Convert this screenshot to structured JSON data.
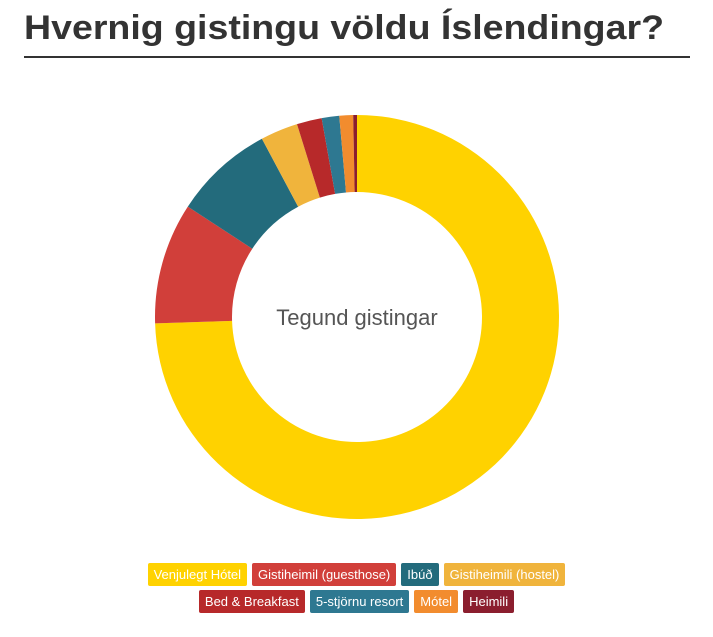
{
  "chart_data": {
    "type": "donut",
    "title": "Hvernig gistingu völdu Íslendingar?",
    "center_label": "Tegund gistingar",
    "series": [
      {
        "name": "Venjulegt Hótel",
        "color": "#FFD200",
        "value": 74.5
      },
      {
        "name": "Gistiheimil (guesthose)",
        "color": "#D13F3A",
        "value": 9.7
      },
      {
        "name": "Ibúð",
        "color": "#236B7C",
        "value": 8
      },
      {
        "name": "Gistiheimili (hostel)",
        "color": "#F0B43C",
        "value": 3
      },
      {
        "name": "Bed & Breakfast",
        "color": "#B7292A",
        "value": 2
      },
      {
        "name": "5-stjörnu resort",
        "color": "#2E7891",
        "value": 1.4
      },
      {
        "name": "Mótel",
        "color": "#F28C2E",
        "value": 1.1
      },
      {
        "name": "Heimili",
        "color": "#8B1E2E",
        "value": 0.3
      }
    ]
  }
}
